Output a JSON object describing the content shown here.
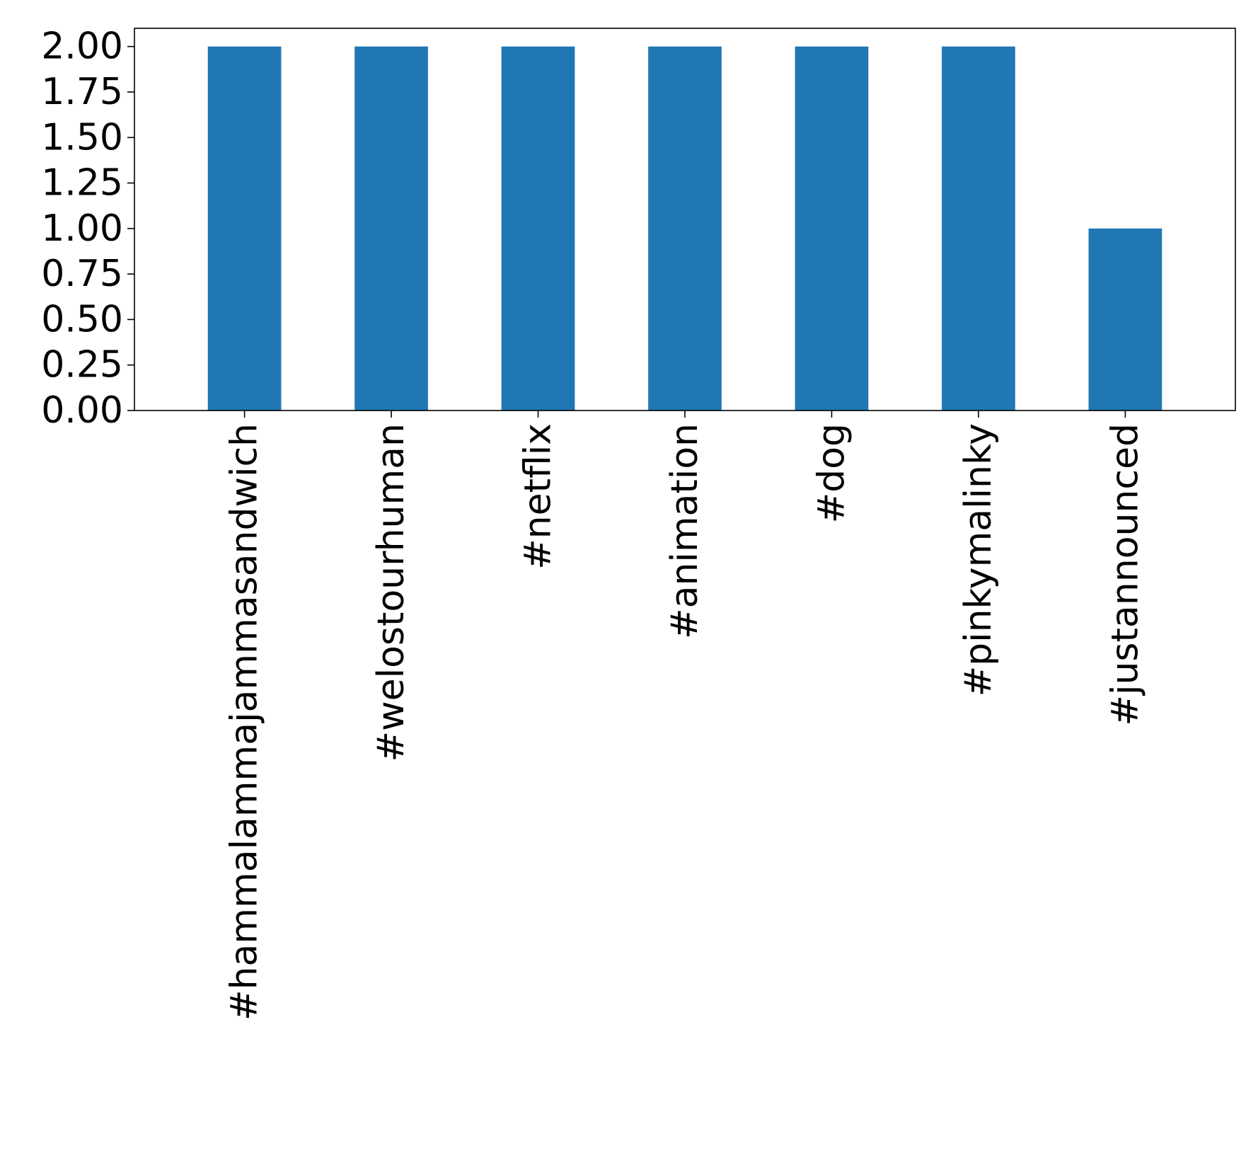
{
  "chart_data": {
    "type": "bar",
    "categories": [
      "#hammalammajammasandwich",
      "#welostourhuman",
      "#netflix",
      "#animation",
      "#dog",
      "#pinkymalinky",
      "#justannounced"
    ],
    "values": [
      2,
      2,
      2,
      2,
      2,
      2,
      1
    ],
    "ylim": [
      0,
      2.1
    ],
    "yticks": [
      "0.00",
      "0.25",
      "0.50",
      "0.75",
      "1.00",
      "1.25",
      "1.50",
      "1.75",
      "2.00"
    ],
    "title": "",
    "xlabel": "",
    "ylabel": "",
    "grid": false,
    "bar_color": "#1f77b4",
    "x_tick_label_rotation": "vertical"
  }
}
